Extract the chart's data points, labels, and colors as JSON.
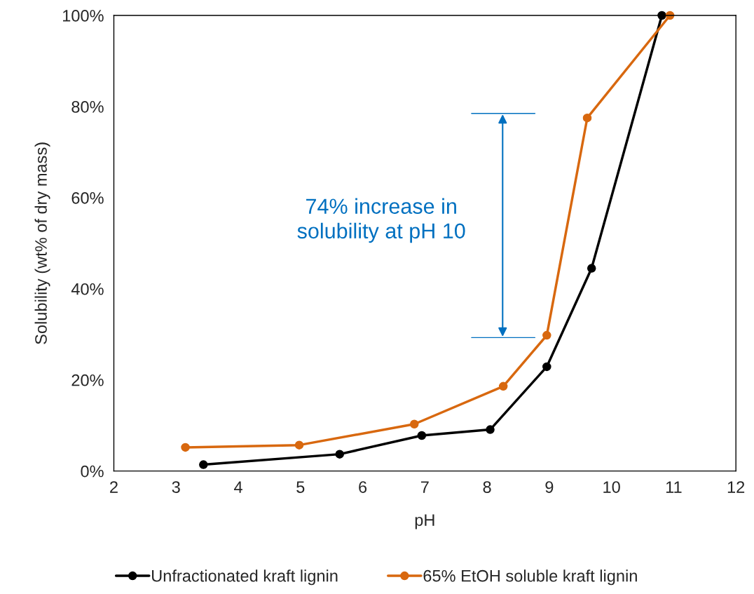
{
  "chart_data": {
    "type": "line",
    "xlabel": "pH",
    "ylabel": "Solubility (wt% of dry mass)",
    "series": [
      {
        "name": "Unfractionated kraft lignin",
        "color": "#000000",
        "x": [
          3.44,
          5.63,
          6.95,
          8.05,
          8.96,
          9.68,
          10.81
        ],
        "values": [
          1.4,
          3.7,
          7.8,
          9.1,
          22.9,
          44.5,
          100
        ]
      },
      {
        "name": "65% EtOH soluble kraft lignin",
        "color": "#d8680f",
        "x": [
          3.15,
          4.98,
          6.83,
          8.26,
          8.96,
          9.61,
          10.94
        ],
        "values": [
          5.2,
          5.7,
          10.3,
          18.6,
          29.8,
          77.5,
          100
        ]
      }
    ],
    "xlim": [
      2,
      12
    ],
    "xticks": [
      2,
      3,
      4,
      5,
      6,
      7,
      8,
      9,
      10,
      11,
      12
    ],
    "ylim": [
      0,
      100
    ],
    "yticks": [
      {
        "value": 0,
        "label": "0%"
      },
      {
        "value": 20,
        "label": "20%"
      },
      {
        "value": 40,
        "label": "40%"
      },
      {
        "value": 60,
        "label": "60%"
      },
      {
        "value": 80,
        "label": "80%"
      },
      {
        "value": 100,
        "label": "100%"
      }
    ],
    "annotations": [
      "74% increase in\nsolubility at pH 10"
    ],
    "grid": false,
    "legend": "bottom",
    "marker": "circle",
    "line_style": "solid"
  }
}
